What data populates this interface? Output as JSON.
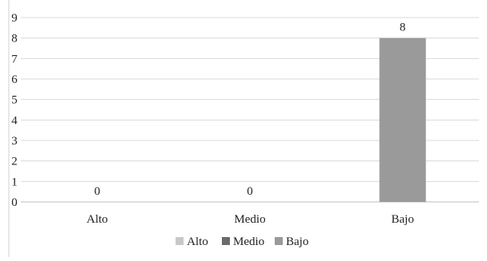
{
  "chart_data": {
    "type": "bar",
    "categories": [
      "Alto",
      "Medio",
      "Bajo"
    ],
    "values": [
      0,
      0,
      8
    ],
    "data_labels": [
      "0",
      "0",
      "8"
    ],
    "colors": [
      "#c8c8c8",
      "#6b6b6b",
      "#9a9a9a"
    ],
    "ylim": [
      0,
      9
    ],
    "yticks": [
      "0",
      "1",
      "2",
      "3",
      "4",
      "5",
      "6",
      "7",
      "8",
      "9"
    ],
    "grid": true,
    "legend": {
      "placement": "bottom",
      "entries": [
        "Alto",
        "Medio",
        "Bajo"
      ]
    },
    "title": "",
    "xlabel": "",
    "ylabel": ""
  }
}
